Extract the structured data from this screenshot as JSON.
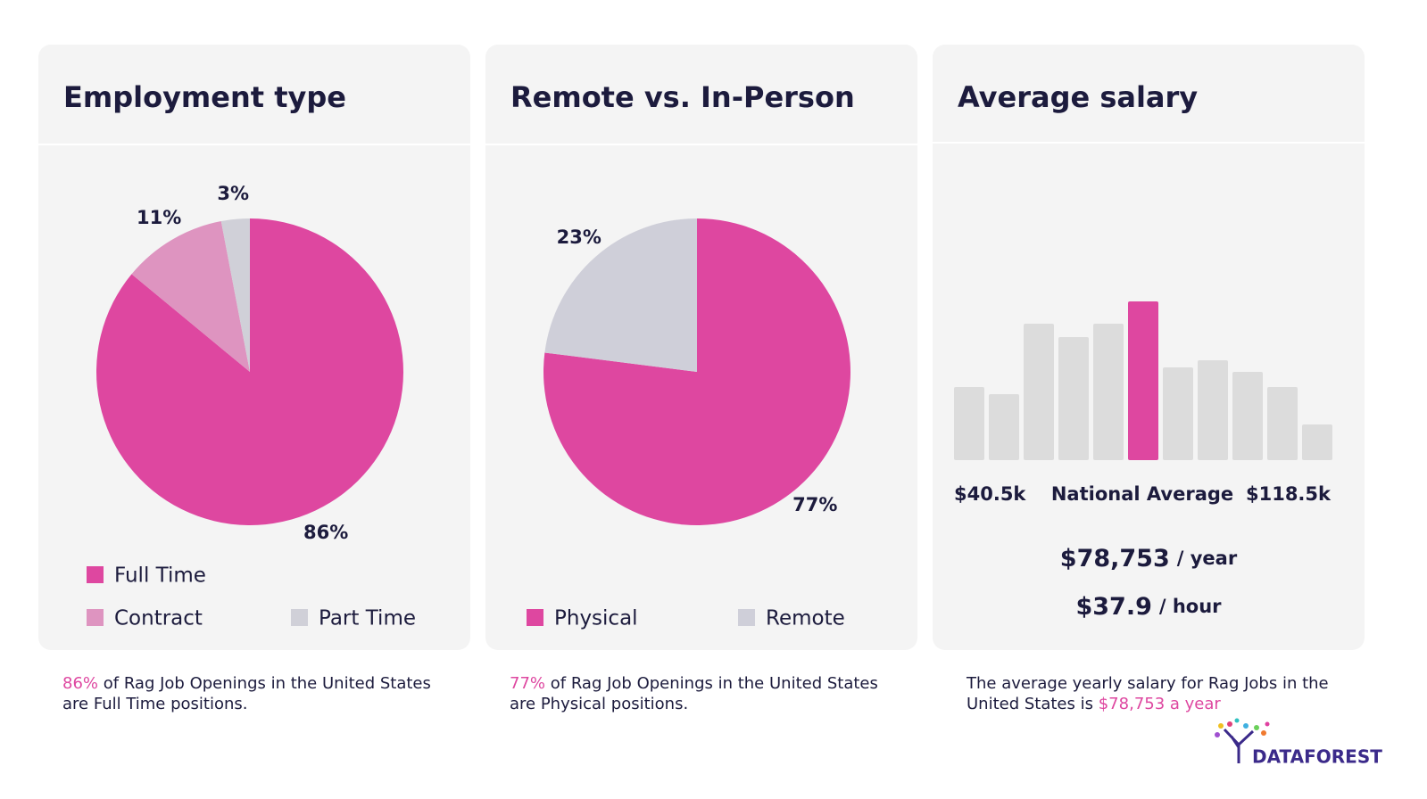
{
  "chart_data": [
    {
      "type": "pie",
      "title": "Employment type",
      "categories": [
        "Full Time",
        "Contract",
        "Part Time"
      ],
      "values": [
        86,
        11,
        3
      ],
      "value_labels": [
        "86%",
        "11%",
        "3%"
      ],
      "colors": [
        "#de47a0",
        "#de94c0",
        "#d0d0d8"
      ],
      "caption": {
        "highlight": "86%",
        "text": "of Rag Job Openings in the United States are Full Time positions."
      }
    },
    {
      "type": "pie",
      "title": "Remote vs. In-Person",
      "categories": [
        "Physical",
        "Remote"
      ],
      "values": [
        77,
        23
      ],
      "value_labels": [
        "77%",
        "23%"
      ],
      "colors": [
        "#de47a0",
        "#cfcfd9"
      ],
      "caption": {
        "highlight": "77%",
        "text": "of Rag Job Openings in the United States are Physical positions."
      }
    },
    {
      "type": "bar",
      "title": "Average salary",
      "values": [
        82,
        74,
        153,
        138,
        153,
        178,
        104,
        112,
        99,
        82,
        40
      ],
      "color": "#dcdcdc",
      "highlight_index": 5,
      "highlight_color": "#de47a0",
      "x_labels": [
        "$40.5k",
        "National Average",
        "$118.5k"
      ],
      "annotations": [
        {
          "value": "$78,753",
          "unit": "/ year"
        },
        {
          "value": "$37.9",
          "unit": "/ hour"
        }
      ],
      "caption": {
        "text": "The average yearly salary for Rag Jobs in the United States is",
        "highlight": "$78,753 a year"
      }
    }
  ],
  "logo": "DATAFOREST"
}
